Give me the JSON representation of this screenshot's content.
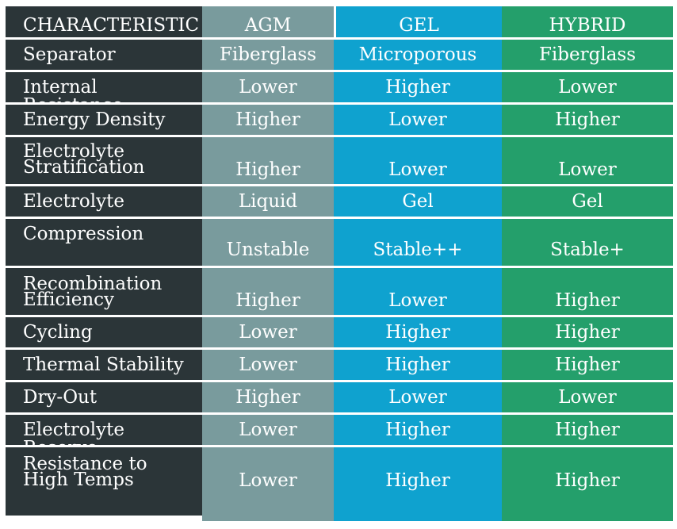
{
  "header": [
    "CHARACTERISTIC",
    "AGM",
    "GEL",
    "HYBRID"
  ],
  "rows": [
    {
      "label": "Separator",
      "agm": "Fiberglass",
      "gel": "Microporous",
      "hybrid": "Fiberglass"
    },
    {
      "label": "Internal Resistance",
      "agm": "Lower",
      "gel": "Higher",
      "hybrid": "Lower"
    },
    {
      "label": "Energy Density",
      "agm": "Higher",
      "gel": "Lower",
      "hybrid": "Higher"
    },
    {
      "label_line1": "Electrolyte",
      "label_line2": "Stratification",
      "agm": "Higher",
      "gel": "Lower",
      "hybrid": "Lower"
    },
    {
      "label": "Electrolyte",
      "agm": "Liquid",
      "gel": "Gel",
      "hybrid": "Gel"
    },
    {
      "label": "Compression",
      "agm": "Unstable",
      "gel": "Stable++",
      "hybrid": "Stable+"
    },
    {
      "label_line1": "Recombination",
      "label_line2": "Efficiency",
      "agm": "Higher",
      "gel": "Lower",
      "hybrid": "Higher"
    },
    {
      "label": "Cycling",
      "agm": "Lower",
      "gel": "Higher",
      "hybrid": "Higher"
    },
    {
      "label": "Thermal Stability",
      "agm": "Lower",
      "gel": "Higher",
      "hybrid": "Higher"
    },
    {
      "label": "Dry-Out",
      "agm": "Higher",
      "gel": "Lower",
      "hybrid": "Lower"
    },
    {
      "label": "Electrolyte Reserve",
      "agm": "Lower",
      "gel": "Higher",
      "hybrid": "Higher"
    },
    {
      "label_line1": "Resistance to",
      "label_line2": "High Temps",
      "agm": "Lower",
      "gel": "Higher",
      "hybrid": "Higher"
    }
  ],
  "colors": {
    "characteristic_column": "#2b3538",
    "agm_column": "#799b9d",
    "gel_column": "#0fa2cf",
    "hybrid_column": "#249f6b",
    "grid_lines": "#ffffff",
    "text": "#ffffff"
  }
}
